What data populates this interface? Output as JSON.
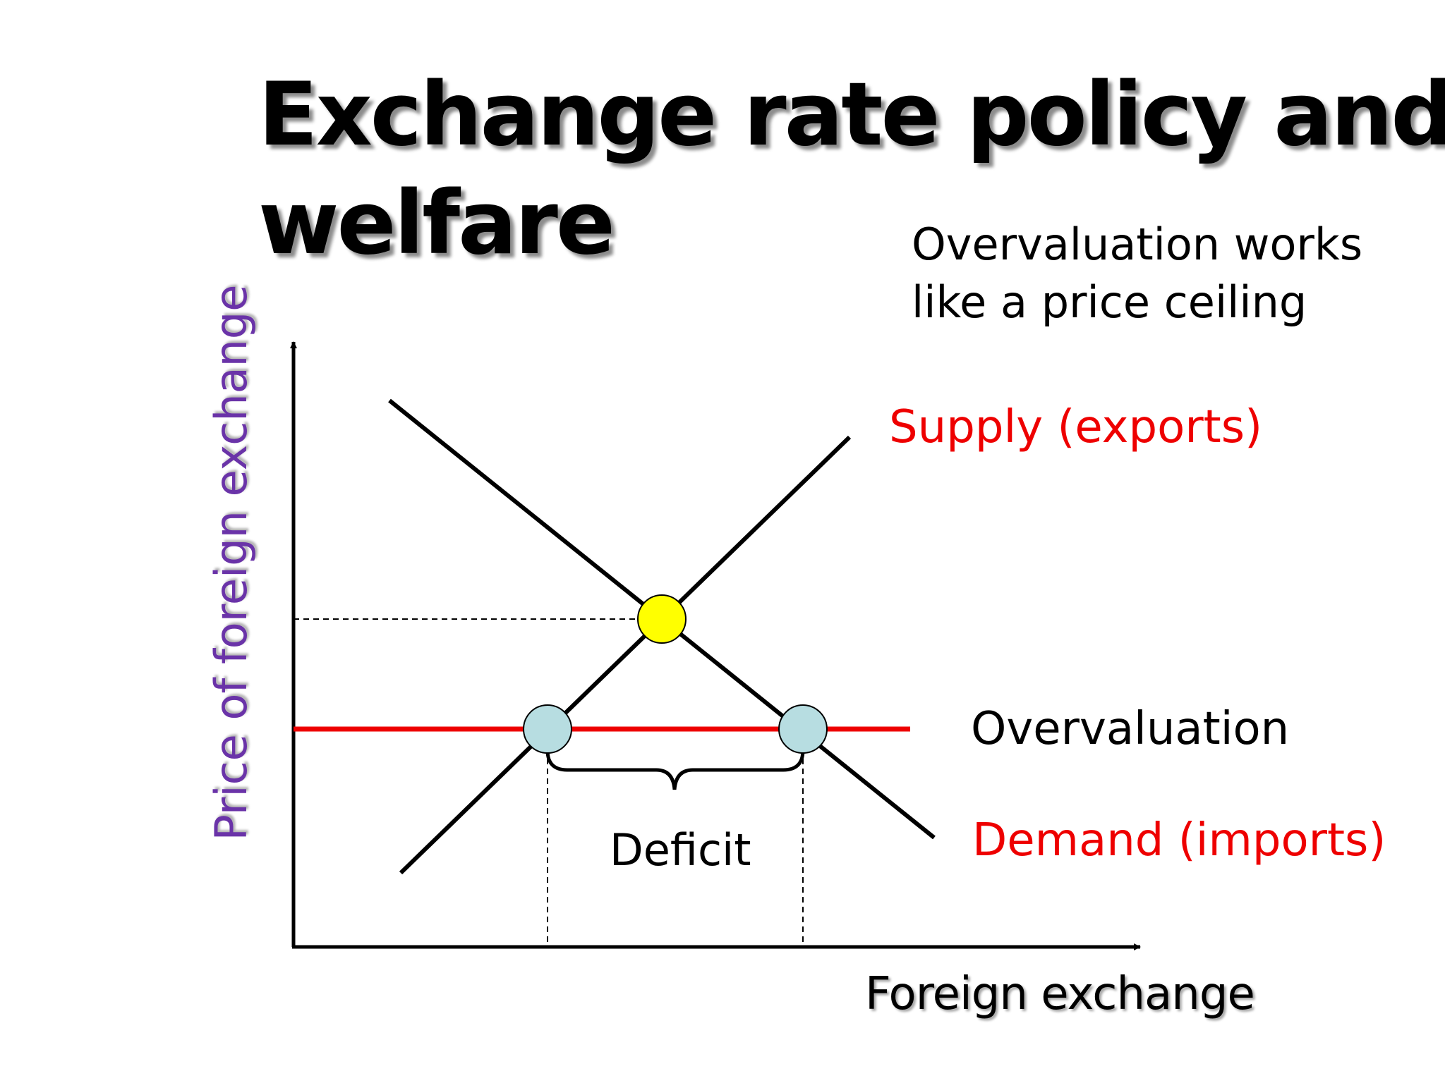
{
  "slide": {
    "title_line1": "Exchange rate policy and",
    "title_line2": "welfare",
    "note_line1": "Overvaluation works",
    "note_line2": "like a price ceiling"
  },
  "diagram": {
    "y_axis_label": "Price of foreign exchange",
    "x_axis_label": "Foreign exchange",
    "supply_label": "Supply (exports)",
    "demand_label": "Demand (imports)",
    "overvaluation_label": "Overvaluation",
    "deficit_label": "Deficit"
  },
  "colors": {
    "curve": "#000000",
    "overvaluation_line": "#ee0000",
    "equilibrium_point": "#ffff00",
    "ceiling_points": "#b7dde1",
    "y_axis_text": "#6a33a8",
    "red_text": "#ee0000"
  }
}
